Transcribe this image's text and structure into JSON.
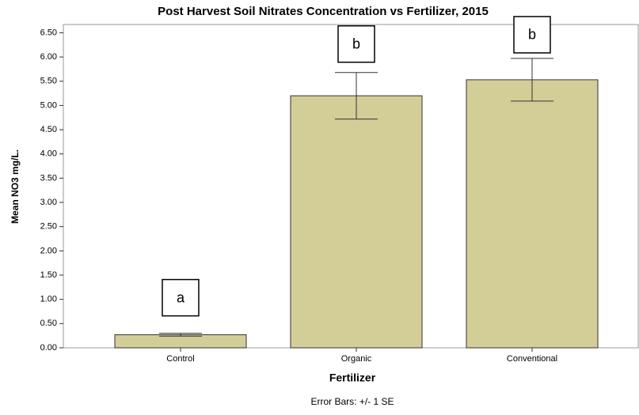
{
  "chart_data": {
    "type": "bar",
    "title": "Post Harvest Soil Nitrates Concentration vs Fertilizer, 2015",
    "x_label": "Fertilizer",
    "y_label": "Mean NO3 mg/L.",
    "footnote": "Error Bars: +/- 1 SE",
    "categories": [
      "Control",
      "Organic",
      "Conventional"
    ],
    "values": [
      0.27,
      5.2,
      5.53
    ],
    "errors": [
      0.03,
      0.48,
      0.44
    ],
    "annotations": [
      "a",
      "b",
      "b"
    ],
    "color": "#d3cd98",
    "ylim": [
      0,
      6.67
    ],
    "yticks": [
      {
        "value": 0,
        "label": "0.00"
      },
      {
        "value": 0.5,
        "label": "0.50"
      },
      {
        "value": 1,
        "label": "1.00"
      },
      {
        "value": 1.5,
        "label": "1.50"
      },
      {
        "value": 2,
        "label": "2.00"
      },
      {
        "value": 2.5,
        "label": "2.50"
      },
      {
        "value": 3,
        "label": "3.00"
      },
      {
        "value": 3.5,
        "label": "3.50"
      },
      {
        "value": 4,
        "label": "4.00"
      },
      {
        "value": 4.5,
        "label": "4.50"
      },
      {
        "value": 5,
        "label": "5.00"
      },
      {
        "value": 5.5,
        "label": "5.50"
      },
      {
        "value": 6,
        "label": "6.00"
      },
      {
        "value": 6.5,
        "label": "6.50"
      }
    ]
  }
}
